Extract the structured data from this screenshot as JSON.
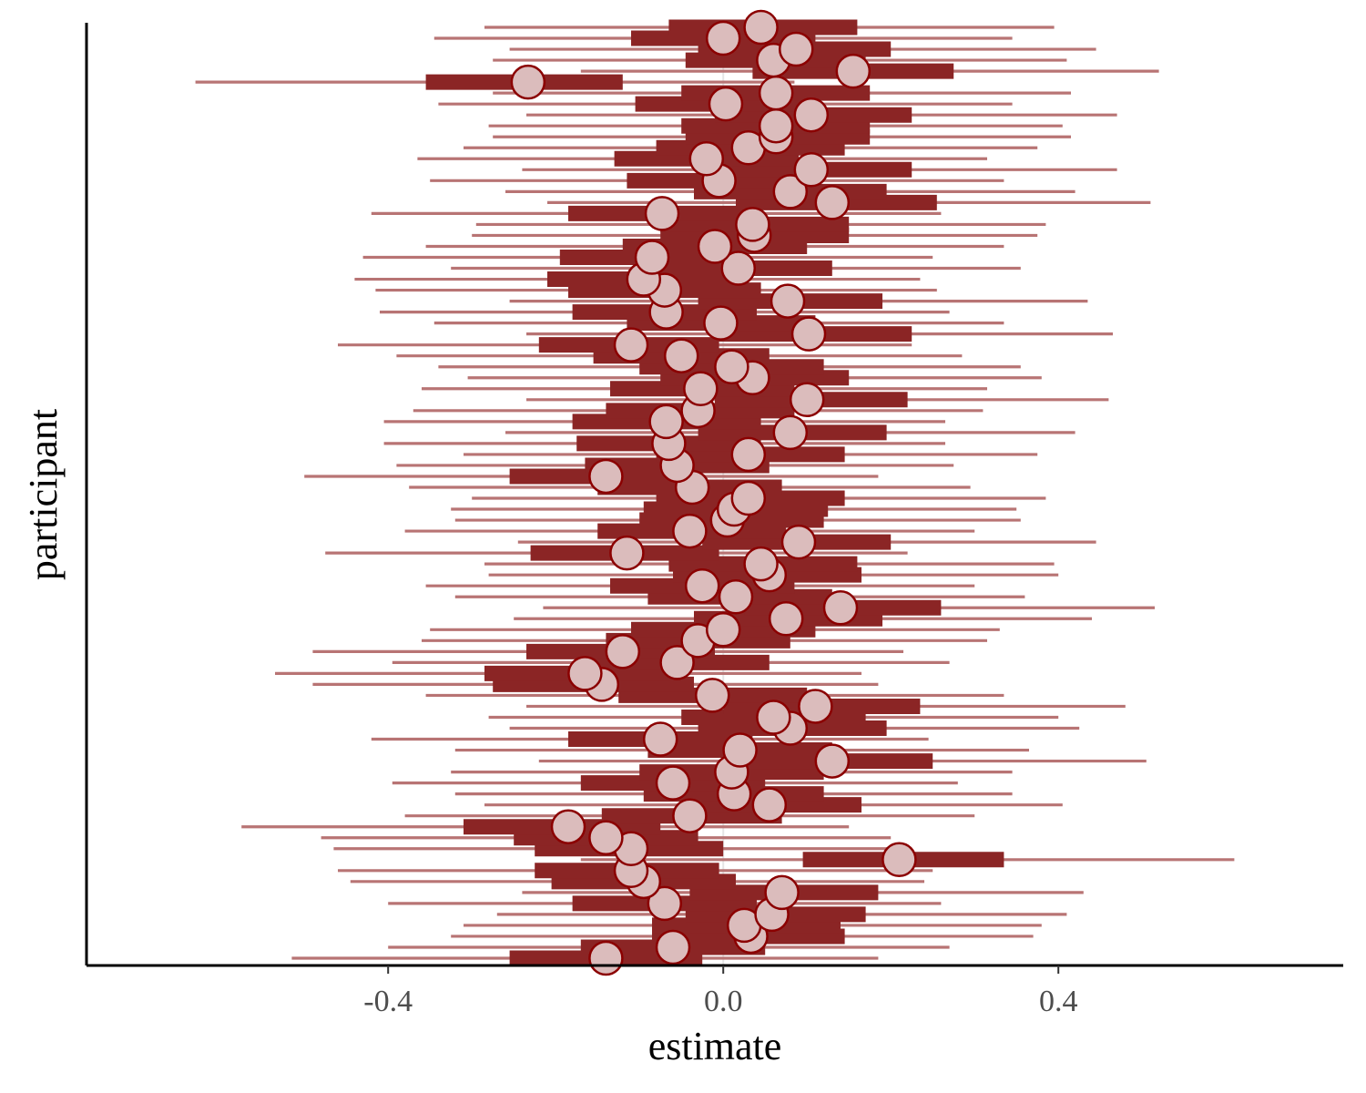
{
  "chart_data": {
    "type": "forest",
    "xlabel": "estimate",
    "ylabel": "participant",
    "xlim": [
      -0.76,
      0.74
    ],
    "xticks": [
      -0.4,
      0.0,
      0.4
    ],
    "xtick_labels": [
      "-0.4",
      "0.0",
      "0.4"
    ],
    "zero_reference_line": true,
    "grid": false,
    "colors": {
      "outer_interval": "#b87474",
      "inner_interval": "#8b2525",
      "point_fill": "#dbbcbc",
      "point_stroke": "#8b0000",
      "reference_line": "#e6e6e6",
      "axis": "#000000"
    },
    "participants": [
      {
        "estimate": -0.14,
        "inner": [
          -0.255,
          -0.025
        ],
        "outer": [
          -0.515,
          0.185
        ]
      },
      {
        "estimate": -0.06,
        "inner": [
          -0.17,
          0.05
        ],
        "outer": [
          -0.4,
          0.27
        ]
      },
      {
        "estimate": 0.033,
        "inner": [
          -0.085,
          0.145
        ],
        "outer": [
          -0.325,
          0.37
        ]
      },
      {
        "estimate": 0.025,
        "inner": [
          -0.085,
          0.14
        ],
        "outer": [
          -0.31,
          0.38
        ]
      },
      {
        "estimate": 0.058,
        "inner": [
          -0.045,
          0.17
        ],
        "outer": [
          -0.27,
          0.41
        ]
      },
      {
        "estimate": -0.07,
        "inner": [
          -0.18,
          0.04
        ],
        "outer": [
          -0.4,
          0.26
        ]
      },
      {
        "estimate": 0.07,
        "inner": [
          -0.04,
          0.185
        ],
        "outer": [
          -0.24,
          0.43
        ]
      },
      {
        "estimate": -0.095,
        "inner": [
          -0.205,
          0.015
        ],
        "outer": [
          -0.445,
          0.24
        ]
      },
      {
        "estimate": -0.11,
        "inner": [
          -0.225,
          -0.005
        ],
        "outer": [
          -0.46,
          0.25
        ]
      },
      {
        "estimate": 0.21,
        "inner": [
          0.095,
          0.335
        ],
        "outer": [
          -0.17,
          0.61
        ]
      },
      {
        "estimate": -0.11,
        "inner": [
          -0.225,
          0.0
        ],
        "outer": [
          -0.465,
          0.215
        ]
      },
      {
        "estimate": -0.14,
        "inner": [
          -0.25,
          -0.03
        ],
        "outer": [
          -0.48,
          0.2
        ]
      },
      {
        "estimate": -0.185,
        "inner": [
          -0.31,
          -0.075
        ],
        "outer": [
          -0.575,
          0.15
        ]
      },
      {
        "estimate": -0.04,
        "inner": [
          -0.145,
          0.07
        ],
        "outer": [
          -0.38,
          0.3
        ]
      },
      {
        "estimate": 0.055,
        "inner": [
          -0.05,
          0.165
        ],
        "outer": [
          -0.285,
          0.405
        ]
      },
      {
        "estimate": 0.013,
        "inner": [
          -0.095,
          0.12
        ],
        "outer": [
          -0.32,
          0.345
        ]
      },
      {
        "estimate": -0.06,
        "inner": [
          -0.17,
          0.05
        ],
        "outer": [
          -0.395,
          0.28
        ]
      },
      {
        "estimate": 0.01,
        "inner": [
          -0.1,
          0.12
        ],
        "outer": [
          -0.325,
          0.345
        ]
      },
      {
        "estimate": 0.13,
        "inner": [
          0.02,
          0.25
        ],
        "outer": [
          -0.22,
          0.505
        ]
      },
      {
        "estimate": 0.02,
        "inner": [
          -0.09,
          0.13
        ],
        "outer": [
          -0.32,
          0.365
        ]
      },
      {
        "estimate": -0.075,
        "inner": [
          -0.185,
          0.035
        ],
        "outer": [
          -0.42,
          0.245
        ]
      },
      {
        "estimate": 0.08,
        "inner": [
          -0.03,
          0.195
        ],
        "outer": [
          -0.255,
          0.425
        ]
      },
      {
        "estimate": 0.06,
        "inner": [
          -0.05,
          0.17
        ],
        "outer": [
          -0.28,
          0.4
        ]
      },
      {
        "estimate": 0.11,
        "inner": [
          0.0,
          0.235
        ],
        "outer": [
          -0.235,
          0.48
        ]
      },
      {
        "estimate": -0.013,
        "inner": [
          -0.125,
          0.1
        ],
        "outer": [
          -0.355,
          0.335
        ]
      },
      {
        "estimate": -0.145,
        "inner": [
          -0.275,
          -0.035
        ],
        "outer": [
          -0.49,
          0.185
        ]
      },
      {
        "estimate": -0.165,
        "inner": [
          -0.285,
          -0.055
        ],
        "outer": [
          -0.535,
          0.165
        ]
      },
      {
        "estimate": -0.055,
        "inner": [
          -0.17,
          0.055
        ],
        "outer": [
          -0.395,
          0.27
        ]
      },
      {
        "estimate": -0.12,
        "inner": [
          -0.235,
          -0.01
        ],
        "outer": [
          -0.49,
          0.215
        ]
      },
      {
        "estimate": -0.03,
        "inner": [
          -0.14,
          0.08
        ],
        "outer": [
          -0.36,
          0.315
        ]
      },
      {
        "estimate": 0.0,
        "inner": [
          -0.11,
          0.11
        ],
        "outer": [
          -0.35,
          0.33
        ]
      },
      {
        "estimate": 0.075,
        "inner": [
          -0.035,
          0.19
        ],
        "outer": [
          -0.25,
          0.44
        ]
      },
      {
        "estimate": 0.14,
        "inner": [
          0.025,
          0.26
        ],
        "outer": [
          -0.215,
          0.515
        ]
      },
      {
        "estimate": 0.015,
        "inner": [
          -0.09,
          0.13
        ],
        "outer": [
          -0.32,
          0.36
        ]
      },
      {
        "estimate": -0.025,
        "inner": [
          -0.135,
          0.085
        ],
        "outer": [
          -0.355,
          0.3
        ]
      },
      {
        "estimate": 0.055,
        "inner": [
          -0.06,
          0.165
        ],
        "outer": [
          -0.28,
          0.4
        ]
      },
      {
        "estimate": 0.045,
        "inner": [
          -0.065,
          0.16
        ],
        "outer": [
          -0.285,
          0.395
        ]
      },
      {
        "estimate": -0.115,
        "inner": [
          -0.23,
          -0.005
        ],
        "outer": [
          -0.475,
          0.22
        ]
      },
      {
        "estimate": 0.09,
        "inner": [
          -0.025,
          0.2
        ],
        "outer": [
          -0.245,
          0.445
        ]
      },
      {
        "estimate": -0.04,
        "inner": [
          -0.15,
          0.075
        ],
        "outer": [
          -0.38,
          0.3
        ]
      },
      {
        "estimate": 0.005,
        "inner": [
          -0.1,
          0.12
        ],
        "outer": [
          -0.32,
          0.355
        ]
      },
      {
        "estimate": 0.013,
        "inner": [
          -0.095,
          0.125
        ],
        "outer": [
          -0.325,
          0.35
        ]
      },
      {
        "estimate": 0.03,
        "inner": [
          -0.08,
          0.145
        ],
        "outer": [
          -0.3,
          0.385
        ]
      },
      {
        "estimate": -0.037,
        "inner": [
          -0.15,
          0.07
        ],
        "outer": [
          -0.375,
          0.295
        ]
      },
      {
        "estimate": -0.14,
        "inner": [
          -0.255,
          -0.025
        ],
        "outer": [
          -0.5,
          0.185
        ]
      },
      {
        "estimate": -0.055,
        "inner": [
          -0.165,
          0.055
        ],
        "outer": [
          -0.39,
          0.275
        ]
      },
      {
        "estimate": 0.03,
        "inner": [
          -0.08,
          0.145
        ],
        "outer": [
          -0.31,
          0.375
        ]
      },
      {
        "estimate": -0.065,
        "inner": [
          -0.175,
          0.045
        ],
        "outer": [
          -0.405,
          0.265
        ]
      },
      {
        "estimate": 0.08,
        "inner": [
          -0.03,
          0.195
        ],
        "outer": [
          -0.26,
          0.42
        ]
      },
      {
        "estimate": -0.068,
        "inner": [
          -0.18,
          0.045
        ],
        "outer": [
          -0.405,
          0.265
        ]
      },
      {
        "estimate": -0.03,
        "inner": [
          -0.14,
          0.085
        ],
        "outer": [
          -0.37,
          0.31
        ]
      },
      {
        "estimate": 0.1,
        "inner": [
          -0.01,
          0.22
        ],
        "outer": [
          -0.235,
          0.46
        ]
      },
      {
        "estimate": -0.027,
        "inner": [
          -0.135,
          0.085
        ],
        "outer": [
          -0.36,
          0.315
        ]
      },
      {
        "estimate": 0.035,
        "inner": [
          -0.075,
          0.15
        ],
        "outer": [
          -0.305,
          0.38
        ]
      },
      {
        "estimate": 0.01,
        "inner": [
          -0.1,
          0.12
        ],
        "outer": [
          -0.34,
          0.355
        ]
      },
      {
        "estimate": -0.05,
        "inner": [
          -0.155,
          0.055
        ],
        "outer": [
          -0.39,
          0.285
        ]
      },
      {
        "estimate": -0.11,
        "inner": [
          -0.22,
          -0.005
        ],
        "outer": [
          -0.46,
          0.225
        ]
      },
      {
        "estimate": 0.102,
        "inner": [
          -0.01,
          0.225
        ],
        "outer": [
          -0.235,
          0.465
        ]
      },
      {
        "estimate": -0.003,
        "inner": [
          -0.115,
          0.11
        ],
        "outer": [
          -0.345,
          0.335
        ]
      },
      {
        "estimate": -0.068,
        "inner": [
          -0.18,
          0.04
        ],
        "outer": [
          -0.41,
          0.27
        ]
      },
      {
        "estimate": 0.077,
        "inner": [
          -0.03,
          0.19
        ],
        "outer": [
          -0.255,
          0.435
        ]
      },
      {
        "estimate": -0.07,
        "inner": [
          -0.185,
          0.045
        ],
        "outer": [
          -0.415,
          0.255
        ]
      },
      {
        "estimate": -0.095,
        "inner": [
          -0.21,
          0.015
        ],
        "outer": [
          -0.44,
          0.235
        ]
      },
      {
        "estimate": 0.018,
        "inner": [
          -0.09,
          0.13
        ],
        "outer": [
          -0.325,
          0.355
        ]
      },
      {
        "estimate": -0.085,
        "inner": [
          -0.195,
          0.025
        ],
        "outer": [
          -0.43,
          0.25
        ]
      },
      {
        "estimate": -0.01,
        "inner": [
          -0.12,
          0.1
        ],
        "outer": [
          -0.355,
          0.335
        ]
      },
      {
        "estimate": 0.037,
        "inner": [
          -0.075,
          0.15
        ],
        "outer": [
          -0.3,
          0.375
        ]
      },
      {
        "estimate": 0.035,
        "inner": [
          -0.075,
          0.15
        ],
        "outer": [
          -0.295,
          0.385
        ]
      },
      {
        "estimate": -0.073,
        "inner": [
          -0.185,
          0.04
        ],
        "outer": [
          -0.42,
          0.26
        ]
      },
      {
        "estimate": 0.13,
        "inner": [
          0.015,
          0.255
        ],
        "outer": [
          -0.21,
          0.51
        ]
      },
      {
        "estimate": 0.08,
        "inner": [
          -0.035,
          0.195
        ],
        "outer": [
          -0.26,
          0.42
        ]
      },
      {
        "estimate": -0.005,
        "inner": [
          -0.115,
          0.11
        ],
        "outer": [
          -0.35,
          0.335
        ]
      },
      {
        "estimate": 0.105,
        "inner": [
          -0.005,
          0.225
        ],
        "outer": [
          -0.24,
          0.47
        ]
      },
      {
        "estimate": -0.02,
        "inner": [
          -0.13,
          0.09
        ],
        "outer": [
          -0.365,
          0.315
        ]
      },
      {
        "estimate": 0.03,
        "inner": [
          -0.08,
          0.145
        ],
        "outer": [
          -0.31,
          0.375
        ]
      },
      {
        "estimate": 0.063,
        "inner": [
          -0.045,
          0.175
        ],
        "outer": [
          -0.275,
          0.415
        ]
      },
      {
        "estimate": 0.063,
        "inner": [
          -0.05,
          0.175
        ],
        "outer": [
          -0.28,
          0.405
        ]
      },
      {
        "estimate": 0.105,
        "inner": [
          -0.01,
          0.225
        ],
        "outer": [
          -0.235,
          0.47
        ]
      },
      {
        "estimate": 0.003,
        "inner": [
          -0.105,
          0.115
        ],
        "outer": [
          -0.34,
          0.345
        ]
      },
      {
        "estimate": 0.063,
        "inner": [
          -0.05,
          0.175
        ],
        "outer": [
          -0.275,
          0.415
        ]
      },
      {
        "estimate": -0.233,
        "inner": [
          -0.355,
          -0.12
        ],
        "outer": [
          -0.63,
          0.085
        ]
      },
      {
        "estimate": 0.155,
        "inner": [
          0.035,
          0.275
        ],
        "outer": [
          -0.17,
          0.52
        ]
      },
      {
        "estimate": 0.06,
        "inner": [
          -0.045,
          0.17
        ],
        "outer": [
          -0.275,
          0.41
        ]
      },
      {
        "estimate": 0.087,
        "inner": [
          -0.03,
          0.2
        ],
        "outer": [
          -0.255,
          0.445
        ]
      },
      {
        "estimate": 0.0,
        "inner": [
          -0.11,
          0.11
        ],
        "outer": [
          -0.345,
          0.345
        ]
      },
      {
        "estimate": 0.045,
        "inner": [
          -0.065,
          0.16
        ],
        "outer": [
          -0.285,
          0.395
        ]
      }
    ]
  }
}
